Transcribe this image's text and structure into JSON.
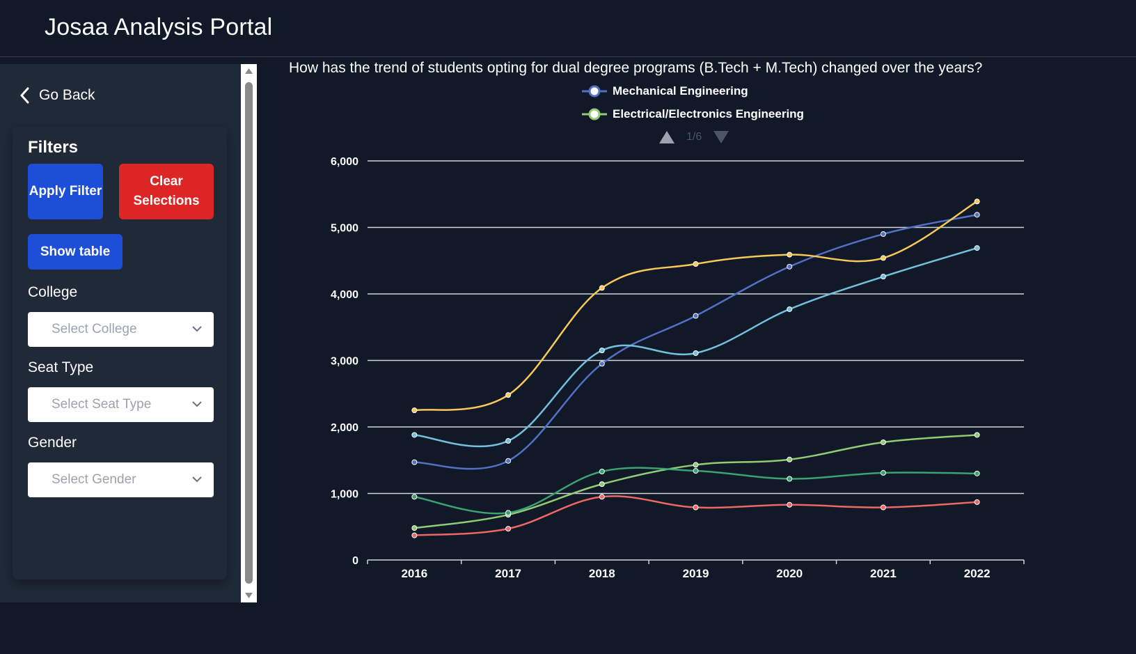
{
  "app": {
    "title": "Josaa Analysis Portal"
  },
  "sidebar": {
    "go_back": "Go Back",
    "filters_title": "Filters",
    "apply_label": "Apply Filter",
    "clear_label": "Clear Selections",
    "show_table_label": "Show table",
    "fields": [
      {
        "label": "College",
        "placeholder": "Select College"
      },
      {
        "label": "Seat Type",
        "placeholder": "Select Seat Type"
      },
      {
        "label": "Gender",
        "placeholder": "Select Gender"
      }
    ]
  },
  "question": "How has the trend of students opting for dual degree programs (B.Tech + M.Tech) changed over the years?",
  "legend": {
    "items": [
      {
        "name": "Mechanical Engineering",
        "color": "#5470c6"
      },
      {
        "name": "Electrical/Electronics Engineering",
        "color": "#91cc75"
      }
    ],
    "page_text": "1/6"
  },
  "colors": {
    "grid": "#d1d5db",
    "axis_text": "#ffffff",
    "pager_active": "#9ca3af",
    "pager_inactive": "#4b5563"
  },
  "chart_data": {
    "type": "line",
    "smooth": true,
    "x": [
      "2016",
      "2017",
      "2018",
      "2019",
      "2020",
      "2021",
      "2022"
    ],
    "ylim": [
      0,
      6000
    ],
    "yticks": [
      0,
      1000,
      2000,
      3000,
      4000,
      5000,
      6000
    ],
    "ytick_labels": [
      "0",
      "1,000",
      "2,000",
      "3,000",
      "4,000",
      "5,000",
      "6,000"
    ],
    "grid": true,
    "legend_position": "top-center",
    "series": [
      {
        "name": "Mechanical Engineering",
        "color": "#5470c6",
        "values": [
          1470,
          1490,
          2950,
          3670,
          4410,
          4900,
          5190
        ]
      },
      {
        "name": "Electrical/Electronics Engineering",
        "color": "#91cc75",
        "values": [
          480,
          680,
          1140,
          1430,
          1510,
          1770,
          1880
        ]
      },
      {
        "name": "",
        "color": "#fac858",
        "values": [
          2250,
          2480,
          4090,
          4450,
          4590,
          4540,
          5390
        ]
      },
      {
        "name": "",
        "color": "#73c0de",
        "values": [
          1880,
          1790,
          3150,
          3110,
          3770,
          4260,
          4690
        ]
      },
      {
        "name": "",
        "color": "#3ba272",
        "values": [
          950,
          710,
          1330,
          1340,
          1220,
          1310,
          1300
        ]
      },
      {
        "name": "",
        "color": "#ee6666",
        "values": [
          370,
          470,
          950,
          790,
          830,
          790,
          870
        ]
      }
    ]
  }
}
